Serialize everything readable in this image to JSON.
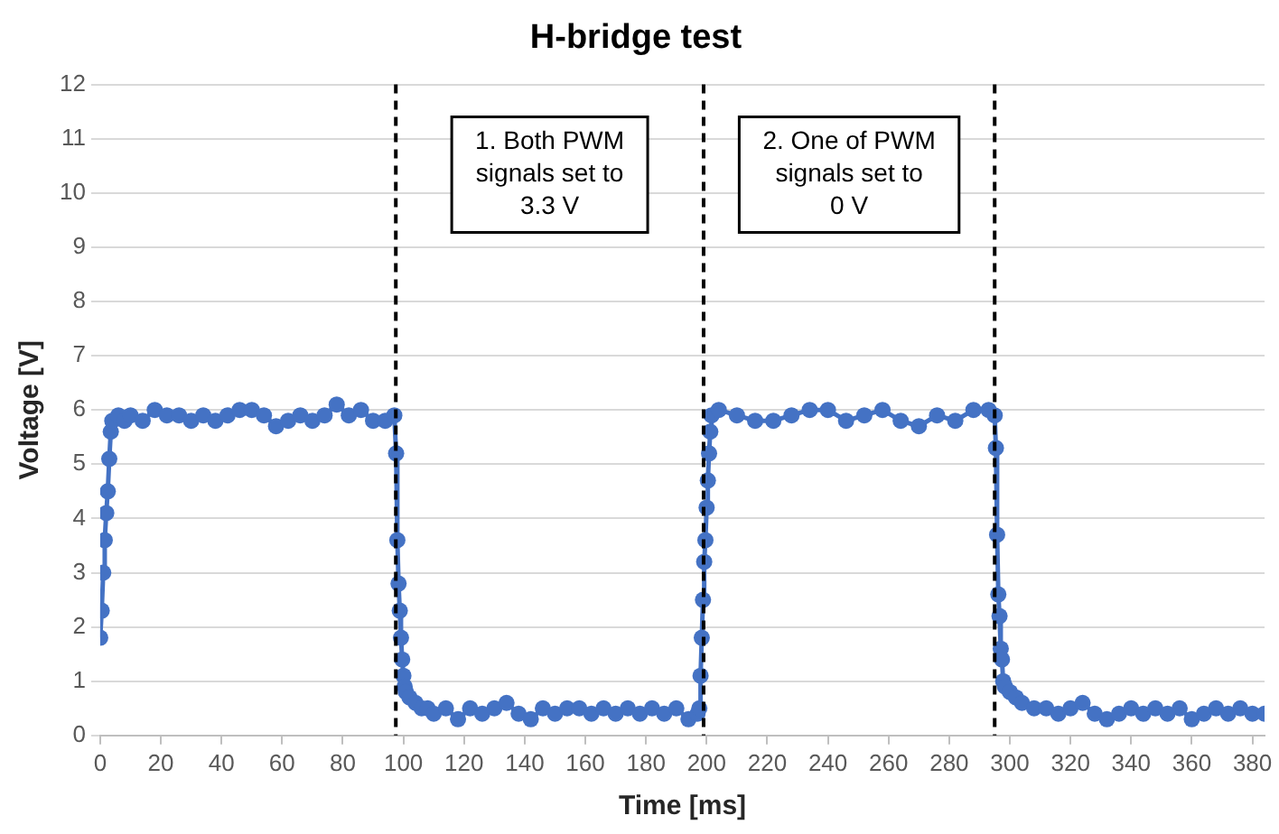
{
  "chart_data": {
    "type": "line",
    "title": "H-bridge test",
    "xlabel": "Time [ms]",
    "ylabel": "Voltage [V]",
    "x": [
      0,
      0.5,
      1,
      1.5,
      2,
      2.5,
      3,
      3.5,
      4,
      6,
      8,
      10,
      14,
      18,
      22,
      26,
      30,
      34,
      38,
      42,
      46,
      50,
      54,
      58,
      62,
      66,
      70,
      74,
      78,
      82,
      86,
      90,
      94,
      97,
      97.6,
      98,
      98.4,
      98.8,
      99.2,
      99.6,
      100,
      100.4,
      100.8,
      102,
      104,
      106,
      108,
      110,
      114,
      118,
      122,
      126,
      130,
      134,
      138,
      142,
      146,
      150,
      154,
      158,
      162,
      166,
      170,
      174,
      178,
      182,
      186,
      190,
      194,
      197,
      197.6,
      198,
      198.4,
      198.8,
      199.2,
      199.6,
      200,
      200.4,
      200.8,
      201.2,
      201.6,
      204,
      210,
      216,
      222,
      228,
      234,
      240,
      246,
      252,
      258,
      264,
      270,
      276,
      282,
      288,
      293,
      295,
      295.4,
      295.8,
      296.2,
      296.6,
      297,
      297.4,
      297.8,
      298.4,
      300,
      302,
      304,
      308,
      312,
      316,
      320,
      324,
      328,
      332,
      336,
      340,
      344,
      348,
      352,
      356,
      360,
      364,
      368,
      372,
      376,
      380,
      384
    ],
    "series": [
      {
        "color": "#4472c4",
        "values": [
          1.8,
          2.3,
          3.0,
          3.6,
          4.1,
          4.5,
          5.1,
          5.6,
          5.8,
          5.9,
          5.8,
          5.9,
          5.8,
          6.0,
          5.9,
          5.9,
          5.8,
          5.9,
          5.8,
          5.9,
          6.0,
          6.0,
          5.9,
          5.7,
          5.8,
          5.9,
          5.8,
          5.9,
          6.1,
          5.9,
          6.0,
          5.8,
          5.8,
          5.9,
          5.2,
          3.6,
          2.8,
          2.3,
          1.8,
          1.4,
          1.1,
          0.9,
          0.8,
          0.7,
          0.6,
          0.5,
          0.5,
          0.4,
          0.5,
          0.3,
          0.5,
          0.4,
          0.5,
          0.6,
          0.4,
          0.3,
          0.5,
          0.4,
          0.5,
          0.5,
          0.4,
          0.5,
          0.4,
          0.5,
          0.4,
          0.5,
          0.4,
          0.5,
          0.3,
          0.4,
          0.5,
          1.1,
          1.8,
          2.5,
          3.2,
          3.6,
          4.2,
          4.7,
          5.2,
          5.6,
          5.9,
          6.0,
          5.9,
          5.8,
          5.8,
          5.9,
          6.0,
          6.0,
          5.8,
          5.9,
          6.0,
          5.8,
          5.7,
          5.9,
          5.8,
          6.0,
          6.0,
          5.9,
          5.3,
          3.7,
          2.6,
          2.2,
          1.6,
          1.4,
          1.0,
          0.9,
          0.8,
          0.7,
          0.6,
          0.5,
          0.5,
          0.4,
          0.5,
          0.6,
          0.4,
          0.3,
          0.4,
          0.5,
          0.4,
          0.5,
          0.4,
          0.5,
          0.3,
          0.4,
          0.5,
          0.4,
          0.5,
          0.4,
          0.4
        ]
      }
    ],
    "xlim": [
      0,
      384
    ],
    "xticks": [
      0,
      20,
      40,
      60,
      80,
      100,
      120,
      140,
      160,
      180,
      200,
      220,
      240,
      260,
      280,
      300,
      320,
      340,
      360,
      380
    ],
    "ylim": [
      0,
      12
    ],
    "yticks": [
      0,
      1,
      2,
      3,
      4,
      5,
      6,
      7,
      8,
      9,
      10,
      11,
      12
    ],
    "grid": "y",
    "marker": "circle",
    "line_style": "solid",
    "ref_lines": [
      {
        "axis": "x",
        "value": 97.5,
        "color": "#000000",
        "line_style": "dashed"
      },
      {
        "axis": "x",
        "value": 199,
        "color": "#000000",
        "line_style": "dashed"
      },
      {
        "axis": "x",
        "value": 295,
        "color": "#000000",
        "line_style": "dashed"
      }
    ],
    "annotations": [
      "1. Both PWM\nsignals set to\n3.3 V",
      "2. One of PWM\nsignals set to\n0 V"
    ]
  }
}
